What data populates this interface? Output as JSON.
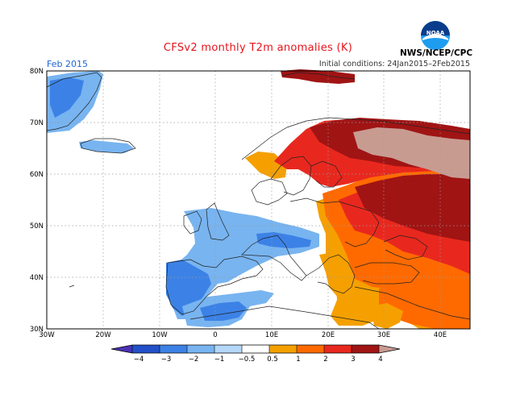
{
  "header": {
    "title": "CFSv2 monthly T2m anomalies (K)",
    "month": "Feb 2015",
    "initial_conditions": "Initial conditions: 24Jan2015–2Feb2015",
    "agency": "NWS/NCEP/CPC",
    "logo_text": "NOAA"
  },
  "axes": {
    "lon_labels": [
      "30W",
      "20W",
      "10W",
      "0",
      "10E",
      "20E",
      "30E",
      "40E"
    ],
    "lat_labels": [
      "80N",
      "70N",
      "60N",
      "50N",
      "40N",
      "30N"
    ]
  },
  "colorbar": {
    "labels": [
      "−4",
      "−3",
      "−2",
      "−1",
      "−0.5",
      "0.5",
      "1",
      "2",
      "3",
      "4"
    ],
    "colors": [
      "#4b32b4",
      "#2350c8",
      "#3c82e6",
      "#78b4f0",
      "#b4d7fa",
      "#ffffff",
      "#f5a000",
      "#ff6a00",
      "#e8281e",
      "#a01414",
      "#c89b91"
    ]
  }
}
